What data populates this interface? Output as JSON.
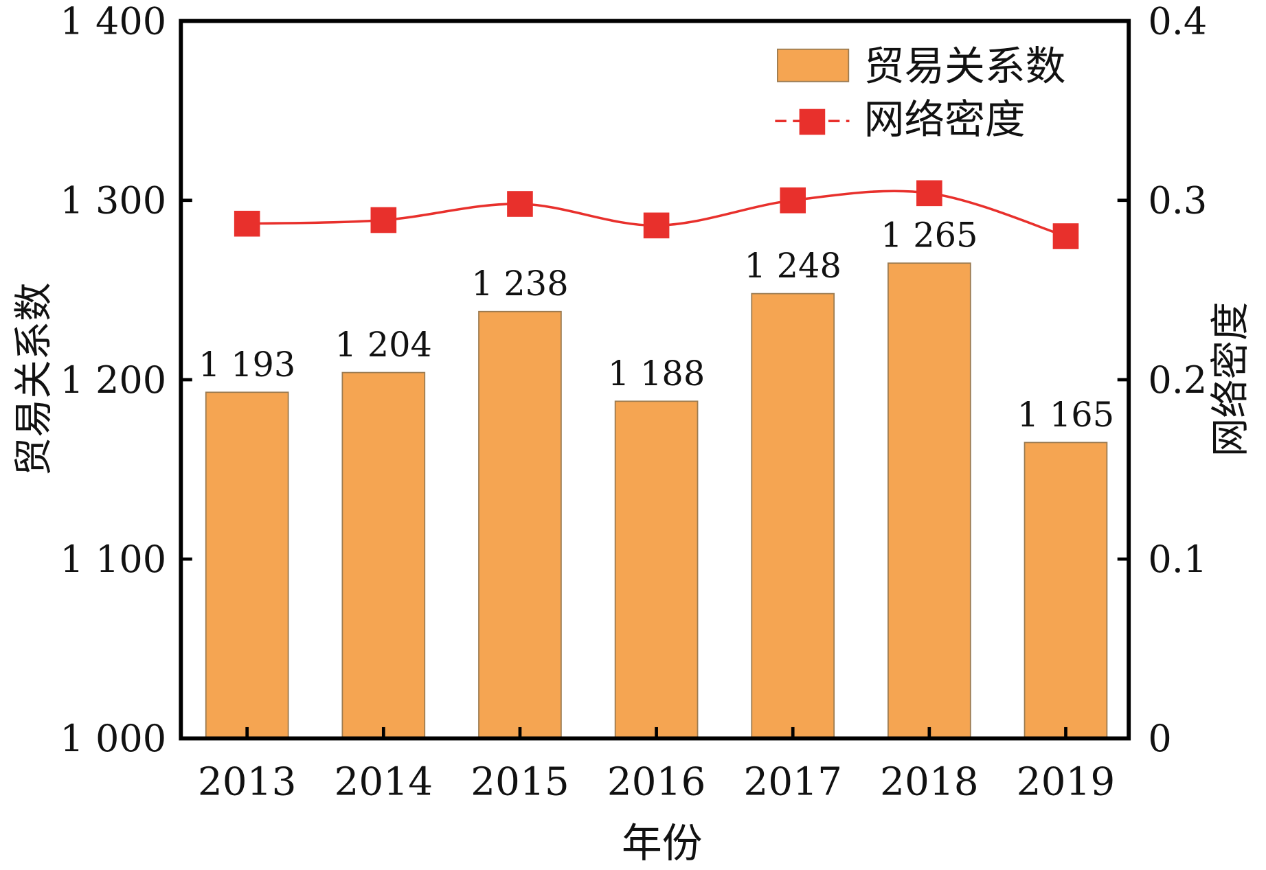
{
  "chart_data": {
    "type": "bar+line",
    "title": "",
    "xlabel": "年份",
    "ylabel_left": "贸易关系数",
    "ylabel_right": "网络密度",
    "categories": [
      "2013",
      "2014",
      "2015",
      "2016",
      "2017",
      "2018",
      "2019"
    ],
    "series": [
      {
        "name": "贸易关系数",
        "type": "bar",
        "axis": "left",
        "color": "#F5A552",
        "values": [
          1193,
          1204,
          1238,
          1188,
          1248,
          1265,
          1165
        ],
        "labels": [
          "1 193",
          "1 204",
          "1 238",
          "1 188",
          "1 248",
          "1 265",
          "1 165"
        ]
      },
      {
        "name": "网络密度",
        "type": "line",
        "axis": "right",
        "color": "#E8302C",
        "values": [
          0.287,
          0.289,
          0.298,
          0.286,
          0.3,
          0.304,
          0.28
        ]
      }
    ],
    "ylim_left": [
      1000,
      1400
    ],
    "yticks_left": [
      "1 000",
      "1 100",
      "1 200",
      "1 300",
      "1 400"
    ],
    "ylim_right": [
      0,
      0.4
    ],
    "yticks_right": [
      "0",
      "0.1",
      "0.2",
      "0.3",
      "0.4"
    ],
    "legend_position": "top-right",
    "grid": false
  }
}
